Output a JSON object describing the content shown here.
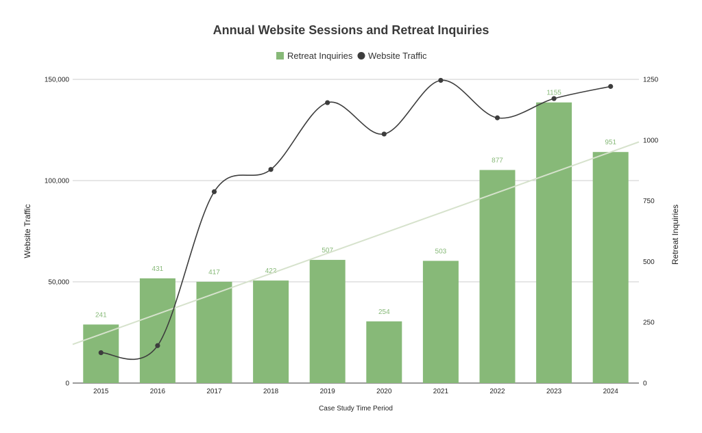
{
  "chart_data": {
    "type": "bar",
    "title": "Annual Website Sessions and Retreat Inquiries",
    "xlabel": "Case Study Time Period",
    "ylabel_left": "Website Traffic",
    "ylabel_right": "Retreat Inquiries",
    "categories": [
      "2015",
      "2016",
      "2017",
      "2018",
      "2019",
      "2020",
      "2021",
      "2022",
      "2023",
      "2024"
    ],
    "series": [
      {
        "name": "Retreat Inquiries",
        "type": "bar",
        "axis": "right",
        "color": "#87b978",
        "values": [
          241,
          431,
          417,
          422,
          507,
          254,
          503,
          877,
          1155,
          951
        ],
        "data_labels": [
          "241",
          "431",
          "417",
          "422",
          "507",
          "254",
          "503",
          "877",
          "1155",
          "951"
        ]
      },
      {
        "name": "Website Traffic",
        "type": "line",
        "smooth": true,
        "axis": "left",
        "color": "#3d3d3d",
        "values": [
          15000,
          18500,
          94500,
          105500,
          138500,
          123000,
          149500,
          131000,
          140500,
          146500
        ]
      }
    ],
    "trendline": {
      "series": "Retreat Inquiries",
      "type": "linear",
      "color": "#d6e2cc"
    },
    "left_axis": {
      "ylim": [
        0,
        150000
      ],
      "ticks": [
        "0",
        "50,000",
        "100,000",
        "150,000"
      ],
      "tick_values": [
        0,
        50000,
        100000,
        150000
      ]
    },
    "right_axis": {
      "ylim": [
        0,
        1250
      ],
      "ticks": [
        "0",
        "250",
        "500",
        "750",
        "1000",
        "1250"
      ],
      "tick_values": [
        0,
        250,
        500,
        750,
        1000,
        1250
      ]
    },
    "grid": true,
    "legend": "top"
  }
}
